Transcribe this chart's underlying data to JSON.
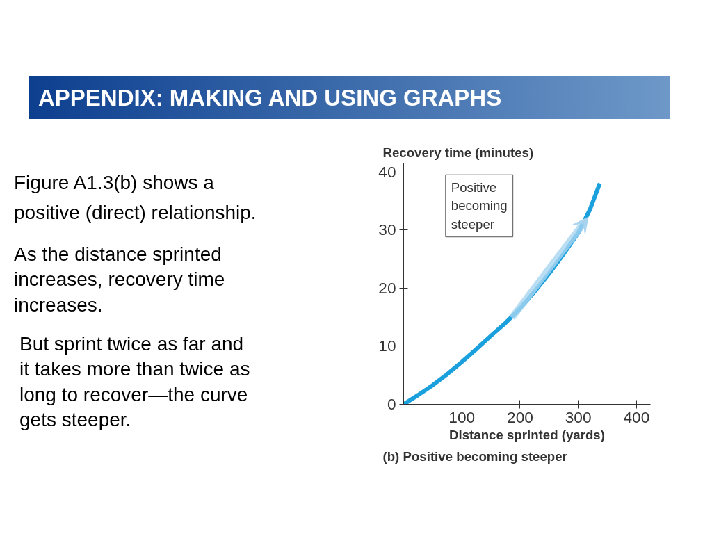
{
  "chart_data": {
    "type": "line",
    "title": "(b) Positive becoming steeper",
    "xlabel": "Distance sprinted (yards)",
    "ylabel": "Recovery time (minutes)",
    "x": [
      0,
      25,
      50,
      75,
      100,
      125,
      150,
      175,
      200,
      225,
      250,
      275,
      300,
      320,
      337
    ],
    "series": [
      {
        "color": "#1aa0dc",
        "values": [
          0,
          1.6,
          3.3,
          5.2,
          7.3,
          9.5,
          11.8,
          14.0,
          16.5,
          19.4,
          22.5,
          25.9,
          29.5,
          33.5,
          38.0
        ]
      }
    ],
    "xlim": [
      0,
      424
    ],
    "ylim": [
      0,
      41.5
    ],
    "xticks": [
      100,
      200,
      300,
      400
    ],
    "yticks": [
      0,
      10,
      20,
      30,
      40
    ],
    "grid": false,
    "marker": "none",
    "line_style": "solid",
    "annotations": [
      "APPENDIX: MAKING AND USING GRAPHS",
      "Figure A1.3(b) shows a\npositive (direct) relationship.",
      "As the distance sprinted\nincreases, recovery time\nincreases.",
      "But sprint twice as far and\nit takes more than twice as\nlong to recover—the curve\ngets steeper.",
      "Positive\nbecoming\nsteeper"
    ]
  }
}
